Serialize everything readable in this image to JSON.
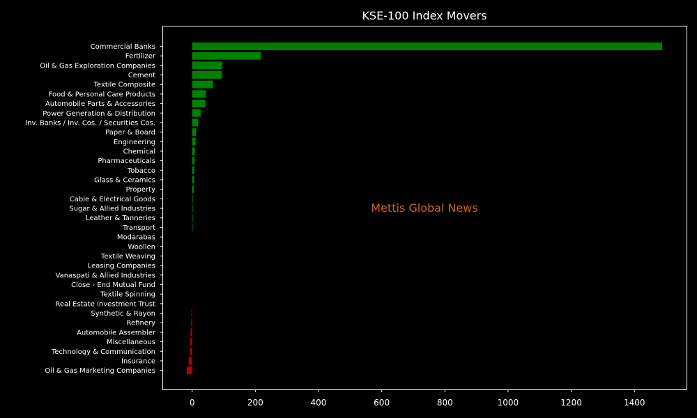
{
  "chart_data": {
    "type": "bar",
    "orientation": "horizontal",
    "title": "KSE-100 Index Movers",
    "xlabel": "",
    "ylabel": "",
    "xlim": [
      -92,
      1565
    ],
    "xticks": [
      0,
      200,
      400,
      600,
      800,
      1000,
      1200,
      1400
    ],
    "grid": false,
    "categories": [
      "Commercial Banks",
      "Fertilizer",
      "Oil & Gas Exploration Companies",
      "Cement",
      "Textile Composite",
      "Food & Personal Care Products",
      "Automobile Parts & Accessories",
      "Power Generation & Distribution",
      "Inv. Banks / Inv. Cos. / Securities Cos.",
      "Paper & Board",
      "Engineering",
      "Chemical",
      "Pharmaceuticals",
      "Tobacco",
      "Glass & Ceramics",
      "Property",
      "Cable & Electrical Goods",
      "Sugar & Allied Industries",
      "Leather & Tanneries",
      "Transport",
      "Modarabas",
      "Woollen",
      "Textile Weaving",
      "Leasing Companies",
      "Vanaspati & Allied Industries",
      "Close - End Mutual Fund",
      "Textile Spinning",
      "Real Estate Investment Trust",
      "Synthetic & Rayon",
      "Refinery",
      "Automobile Assembler",
      "Miscellaneous",
      "Technology & Communication",
      "Insurance",
      "Oil & Gas Marketing Companies"
    ],
    "values": [
      1488,
      218,
      95,
      94,
      66,
      43,
      42,
      27,
      19,
      13,
      11,
      9,
      8,
      7,
      6,
      5,
      2,
      2,
      1.5,
      1,
      0,
      0,
      0,
      0,
      0,
      0,
      0,
      0,
      -2,
      -3,
      -5,
      -6,
      -7,
      -11,
      -17
    ],
    "positive_color": "#008000",
    "negative_color": "#b00000",
    "watermark": "Mettis Global News",
    "watermark_color": "#c8651c"
  }
}
